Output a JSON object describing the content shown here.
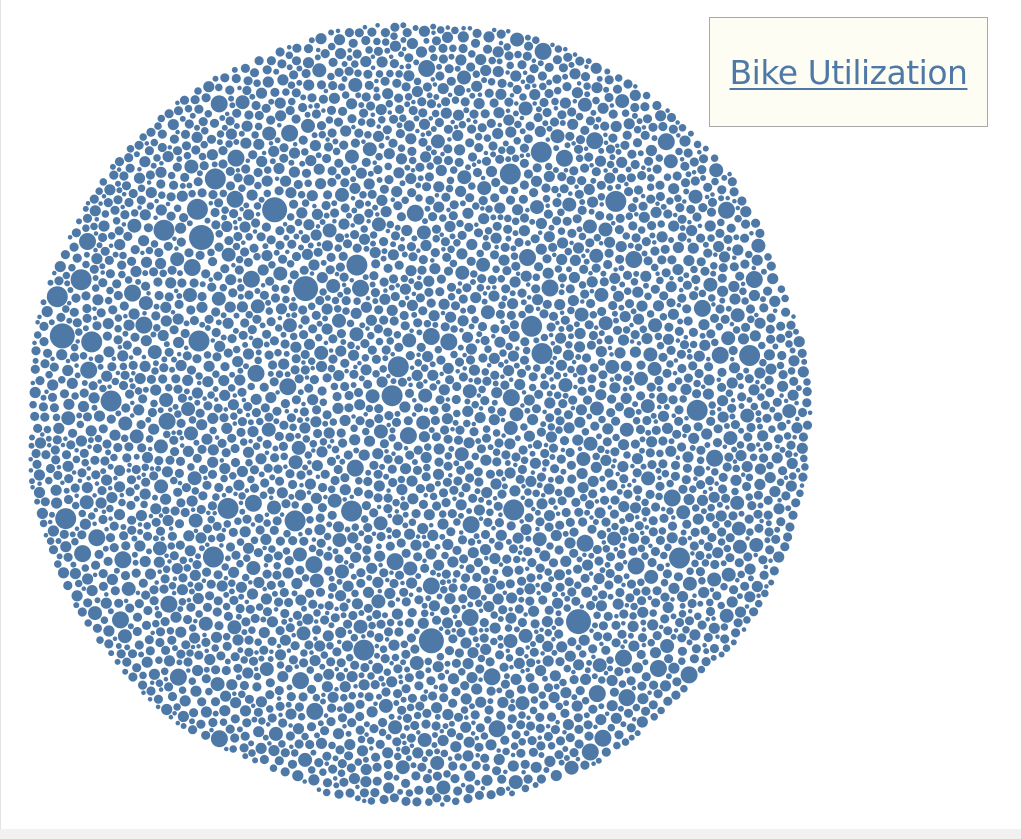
{
  "header": {
    "title_link": "Bike Utilization"
  },
  "colors": {
    "bubble": "#4e79a7",
    "title_box_bg": "#fdfdf4",
    "title_text": "#4e79a7"
  },
  "chart_data": {
    "type": "scatter",
    "subtype": "packed-bubbles",
    "title": "Bike Utilization",
    "legend": "none",
    "grid": false,
    "series": [
      {
        "color": "#4e79a7",
        "values": []
      }
    ]
  }
}
